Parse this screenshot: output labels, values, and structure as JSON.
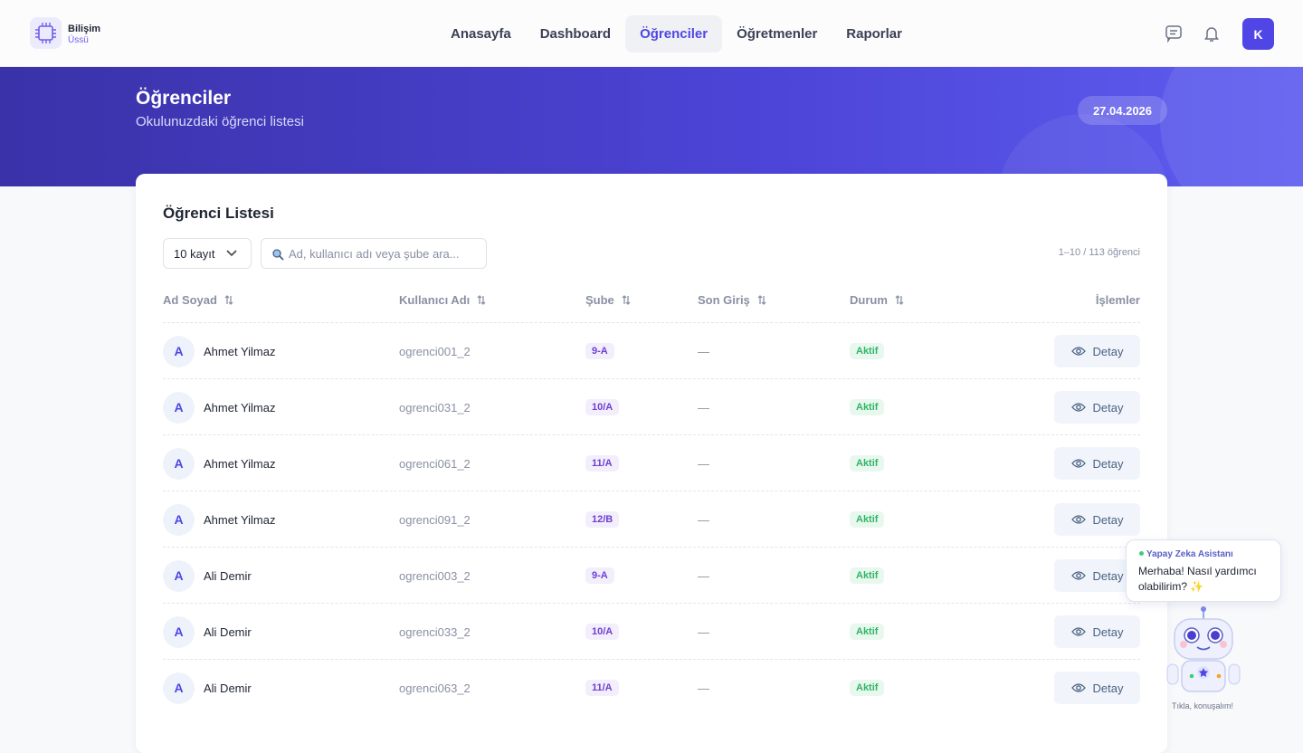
{
  "header": {
    "logo": {
      "line1": "Bilişim",
      "line2": "Üssü"
    },
    "nav": [
      "Anasayfa",
      "Dashboard",
      "Öğrenciler",
      "Öğretmenler",
      "Raporlar"
    ],
    "active_nav": 2,
    "avatar": "K"
  },
  "banner": {
    "title": "Öğrenciler",
    "subtitle": "Okulunuzdaki öğrenci listesi",
    "date": "27.04.2026"
  },
  "card": {
    "title": "Öğrenci Listesi",
    "page_size": "10 kayıt",
    "search_placeholder": "Ad, kullanıcı adı veya şube ara...",
    "count": "1–10 / 113 öğrenci",
    "columns": [
      "Ad Soyad",
      "Kullanıcı Adı",
      "Şube",
      "Son Giriş",
      "Durum",
      "İşlemler"
    ],
    "rows": [
      {
        "initial": "A",
        "name": "Ahmet Yilmaz",
        "username": "ogrenci001_2",
        "class": "9-A",
        "last_login": "—",
        "status": "Aktif",
        "action": "Detay"
      },
      {
        "initial": "A",
        "name": "Ahmet Yilmaz",
        "username": "ogrenci031_2",
        "class": "10/A",
        "last_login": "—",
        "status": "Aktif",
        "action": "Detay"
      },
      {
        "initial": "A",
        "name": "Ahmet Yilmaz",
        "username": "ogrenci061_2",
        "class": "11/A",
        "last_login": "—",
        "status": "Aktif",
        "action": "Detay"
      },
      {
        "initial": "A",
        "name": "Ahmet Yilmaz",
        "username": "ogrenci091_2",
        "class": "12/B",
        "last_login": "—",
        "status": "Aktif",
        "action": "Detay"
      },
      {
        "initial": "A",
        "name": "Ali Demir",
        "username": "ogrenci003_2",
        "class": "9-A",
        "last_login": "—",
        "status": "Aktif",
        "action": "Detay"
      },
      {
        "initial": "A",
        "name": "Ali Demir",
        "username": "ogrenci033_2",
        "class": "10/A",
        "last_login": "—",
        "status": "Aktif",
        "action": "Detay"
      },
      {
        "initial": "A",
        "name": "Ali Demir",
        "username": "ogrenci063_2",
        "class": "11/A",
        "last_login": "—",
        "status": "Aktif",
        "action": "Detay"
      }
    ]
  },
  "assistant": {
    "title": "Yapay Zeka Asistanı",
    "message": "Merhaba! Nasıl yardımcı olabilirim? ✨",
    "caption": "Tıkla, konuşalım!"
  }
}
